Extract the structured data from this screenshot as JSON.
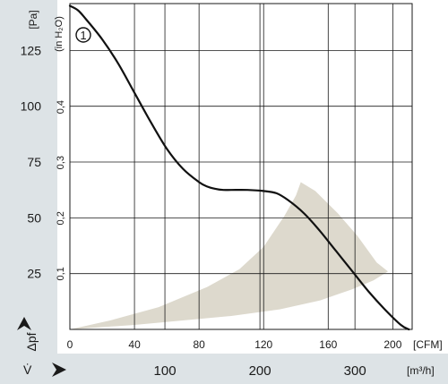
{
  "chart_data": {
    "type": "line",
    "title": "",
    "curve_marker": "1",
    "pressure_units": {
      "pa": "[Pa]",
      "inh2o": "(in H₂O)"
    },
    "y_symbol": "Δpf",
    "x_symbol": "V̇",
    "flow_units": {
      "cfm": "[CFM]",
      "m3h": "[m³/h]"
    },
    "y_pa_ticks": [
      "25",
      "50",
      "75",
      "100",
      "125"
    ],
    "y_pa_tick_values": [
      25,
      50,
      75,
      100,
      125
    ],
    "y_inh2o_ticks": [
      "0,1",
      "0,2",
      "0,3",
      "0,4"
    ],
    "y_inh2o_tick_values": [
      0.1,
      0.2,
      0.3,
      0.4
    ],
    "x_cfm_ticks": [
      "0",
      "40",
      "80",
      "120",
      "160",
      "200"
    ],
    "x_cfm_tick_values": [
      0,
      40,
      80,
      120,
      160,
      200
    ],
    "x_m3h_ticks": [
      "100",
      "200",
      "300"
    ],
    "x_m3h_tick_values": [
      100,
      200,
      300
    ],
    "xlim": [
      0,
      212
    ],
    "ylim": [
      0,
      146
    ],
    "grid": true,
    "series": [
      {
        "name": "1",
        "x": [
          0,
          5,
          10,
          20,
          30,
          40,
          50,
          60,
          70,
          80,
          85,
          90,
          95,
          100,
          110,
          120,
          128,
          135,
          145,
          155,
          165,
          175,
          185,
          195,
          205,
          210
        ],
        "y": [
          145,
          143,
          139,
          130,
          119,
          106,
          93,
          81,
          72,
          66,
          64,
          63,
          62.5,
          62.5,
          62.5,
          62,
          61,
          58,
          52,
          44,
          35,
          26,
          17,
          9,
          2,
          0
        ]
      }
    ],
    "operating_region": {
      "polygon": [
        [
          0,
          0
        ],
        [
          25,
          4
        ],
        [
          55,
          10
        ],
        [
          85,
          19
        ],
        [
          105,
          27
        ],
        [
          120,
          37
        ],
        [
          133,
          51
        ],
        [
          140,
          60
        ],
        [
          143,
          66
        ],
        [
          152,
          62
        ],
        [
          166,
          52
        ],
        [
          178,
          42
        ],
        [
          190,
          30
        ],
        [
          197,
          26
        ],
        [
          188,
          22
        ],
        [
          175,
          18
        ],
        [
          155,
          13
        ],
        [
          130,
          9
        ],
        [
          100,
          6
        ],
        [
          70,
          4
        ],
        [
          40,
          2
        ],
        [
          0,
          0
        ]
      ],
      "color": "#ddd9cd"
    },
    "colors": {
      "curve": "#111111",
      "grid": "#1a1a1a",
      "axis_band": "#dde3e6",
      "text": "#1a1a1a"
    }
  }
}
